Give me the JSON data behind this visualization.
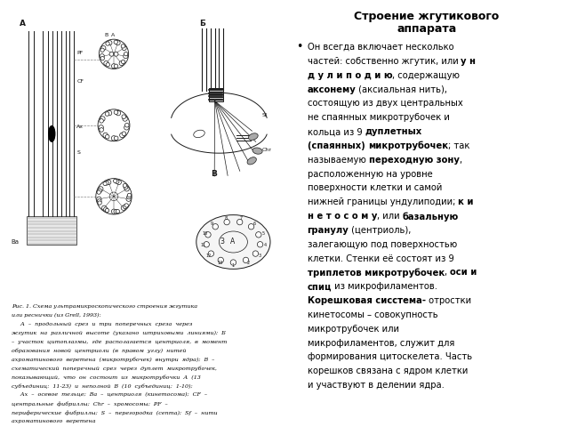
{
  "bg_color": "#ffffff",
  "text_color": "#000000",
  "fig_width": 6.4,
  "fig_height": 4.8,
  "dpi": 100,
  "title_line1": "Строение жгутикового",
  "title_line2": "аппарата",
  "caption_lines": [
    "Рис. 1. Схема ультрамикроскопического строения жгутика",
    "или реснички (из Grell, 1993):",
    "     А  –  продольный  срез  и  три  поперечных  среза  через",
    "жгутик  на  различной  высоте  (указано  штриховыми  линиями);  Б",
    "–  участок  цитоплазмы,  где  располагается  центриоля,  в  момент",
    "образования  новой  центриоли  (в  правом  углу)  нитей",
    "ахроматинового  веретена  (микротрубочек)  внутри  ядра);  В  –",
    "схематический  поперечный  срез  через  дуплет  микротрубочек,",
    "показывающий,  что  он  состоит  из  микротрубочки  А  (13",
    "субъединиц:  11-23)  и  неполной  В  (10  субъединиц:  1-10);",
    "     Ax  –  осевое  тельце;  Ва  –  центриоля  (кинетосома);  CF  –",
    "центральные  фибриллы;  Chr  –  хромосомы;  PF  –",
    "периферические  фибриллы;  S  –  перегородка  (септа);  Sf  –  нити",
    "ахроматинового  веретена"
  ],
  "dark": "#1a1a1a",
  "gray": "#888888",
  "lightgray": "#cccccc"
}
